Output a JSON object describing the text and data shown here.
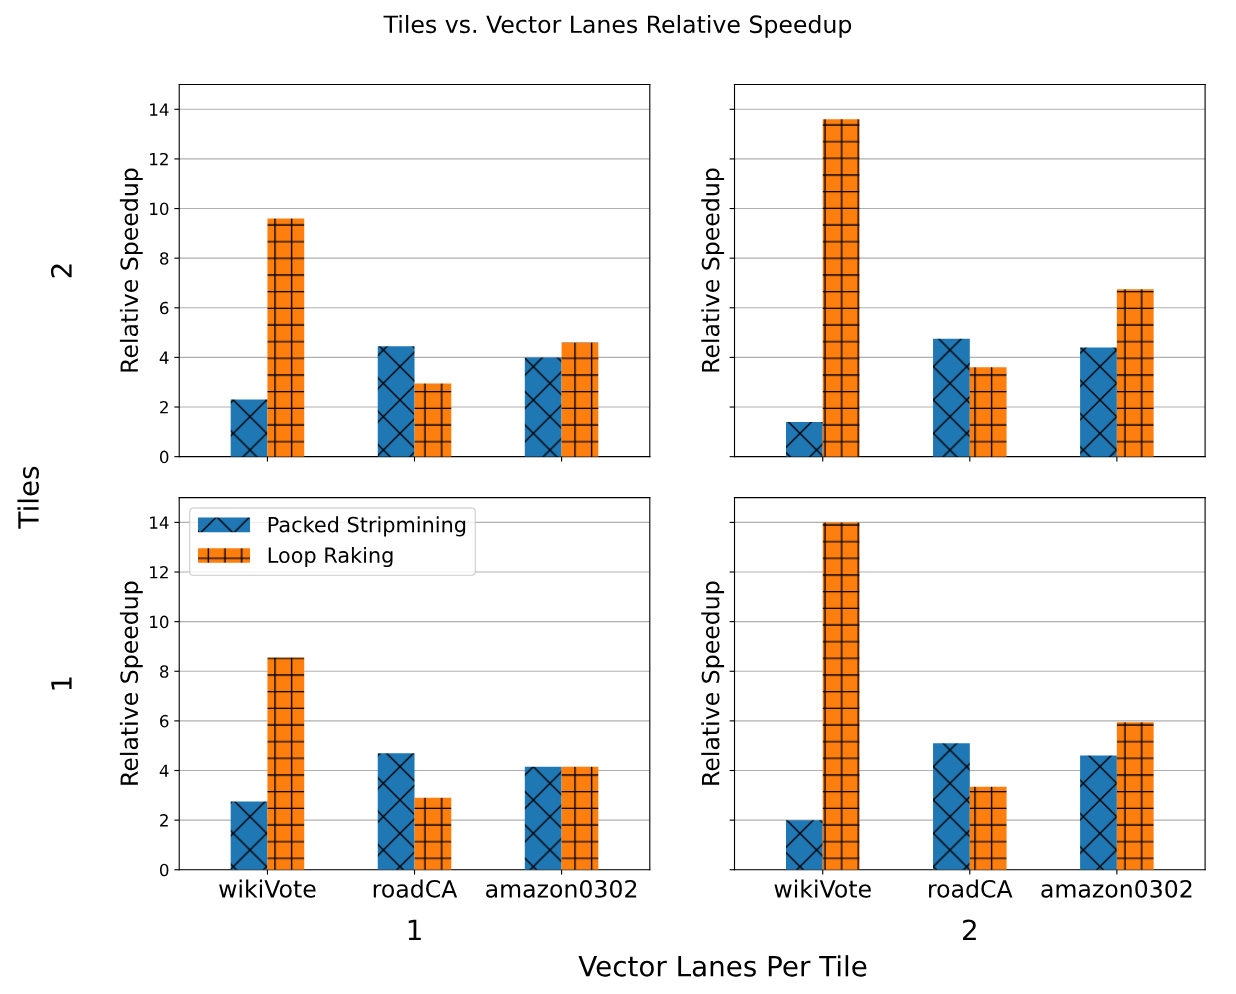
{
  "chart_data": [
    {
      "type": "bar",
      "title": "Tiles vs. Vector Lanes Relative Speedup",
      "ylabel": "Relative Speedup",
      "annotations": [
        "Tiles",
        "2"
      ],
      "categories": [
        "wikiVote",
        "roadCA",
        "amazon0302"
      ],
      "series": [
        {
          "color": "#1f77b4",
          "values": [
            2.3,
            4.45,
            4.0
          ]
        },
        {
          "color": "#ff7f0e",
          "values": [
            9.6,
            2.95,
            4.6
          ]
        }
      ],
      "ylim": [
        0,
        15
      ],
      "yticks": [
        0,
        2,
        4,
        6,
        8,
        10,
        12,
        14
      ],
      "grid": "y",
      "tick_labels": "y",
      "legend": false
    },
    {
      "type": "bar",
      "ylabel": "Relative Speedup",
      "categories": [
        "wikiVote",
        "roadCA",
        "amazon0302"
      ],
      "series": [
        {
          "color": "#1f77b4",
          "values": [
            1.4,
            4.75,
            4.4
          ]
        },
        {
          "color": "#ff7f0e",
          "values": [
            13.6,
            3.6,
            6.75
          ]
        }
      ],
      "ylim": [
        0,
        15
      ],
      "yticks": [
        0,
        2,
        4,
        6,
        8,
        10,
        12,
        14
      ],
      "grid": "y",
      "tick_labels": false,
      "legend": false
    },
    {
      "type": "bar",
      "ylabel": "Relative Speedup",
      "xlabel": "1",
      "annotations": [
        "1"
      ],
      "categories": [
        "wikiVote",
        "roadCA",
        "amazon0302"
      ],
      "series": [
        {
          "name": "Packed Stripmining",
          "color": "#1f77b4",
          "values": [
            2.75,
            4.7,
            4.15
          ]
        },
        {
          "name": "Loop Raking",
          "color": "#ff7f0e",
          "values": [
            8.55,
            2.9,
            4.15
          ]
        }
      ],
      "ylim": [
        0,
        15
      ],
      "yticks": [
        0,
        2,
        4,
        6,
        8,
        10,
        12,
        14
      ],
      "grid": "y",
      "legend": "top left"
    },
    {
      "type": "bar",
      "ylabel": "Relative Speedup",
      "xlabel": "2",
      "annotations": [
        "Vector Lanes Per Tile"
      ],
      "categories": [
        "wikiVote",
        "roadCA",
        "amazon0302"
      ],
      "series": [
        {
          "color": "#1f77b4",
          "values": [
            2.0,
            5.1,
            4.6
          ]
        },
        {
          "color": "#ff7f0e",
          "values": [
            14.0,
            3.35,
            5.95
          ]
        }
      ],
      "ylim": [
        0,
        15
      ],
      "yticks": [
        0,
        2,
        4,
        6,
        8,
        10,
        12,
        14
      ],
      "grid": "y",
      "tick_labels": "x",
      "legend": false
    }
  ]
}
